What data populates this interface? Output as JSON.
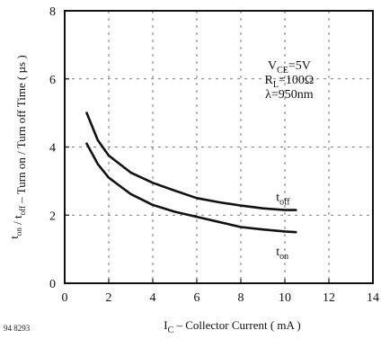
{
  "figure_id": "94 8293",
  "chart_data": {
    "type": "line",
    "xlabel": "I_C – Collector Current ( mA )",
    "ylabel": "t_on / t_off – Turn on / Turn off Time ( µs )",
    "xlim": [
      0,
      14
    ],
    "ylim": [
      0,
      8
    ],
    "xticks": [
      0,
      2,
      4,
      6,
      8,
      10,
      12,
      14
    ],
    "yticks": [
      0,
      2,
      4,
      6,
      8
    ],
    "grid": true,
    "grid_style": "dotted",
    "conditions": {
      "vce": "V_CE=5V",
      "rl": "R_L=100Ω",
      "lambda": "λ=950nm"
    },
    "series": [
      {
        "name": "t_off",
        "color": "#111111",
        "x": [
          1.0,
          1.5,
          2.0,
          3.0,
          4.0,
          5.0,
          6.0,
          7.0,
          8.0,
          9.0,
          10.0,
          10.5
        ],
        "y": [
          5.0,
          4.2,
          3.75,
          3.25,
          2.95,
          2.72,
          2.5,
          2.38,
          2.28,
          2.2,
          2.15,
          2.15
        ]
      },
      {
        "name": "t_on",
        "color": "#111111",
        "x": [
          1.0,
          1.5,
          2.0,
          3.0,
          4.0,
          5.0,
          6.0,
          7.0,
          8.0,
          9.0,
          10.0,
          10.5
        ],
        "y": [
          4.1,
          3.5,
          3.1,
          2.62,
          2.3,
          2.1,
          1.95,
          1.8,
          1.65,
          1.58,
          1.52,
          1.5
        ]
      }
    ]
  }
}
